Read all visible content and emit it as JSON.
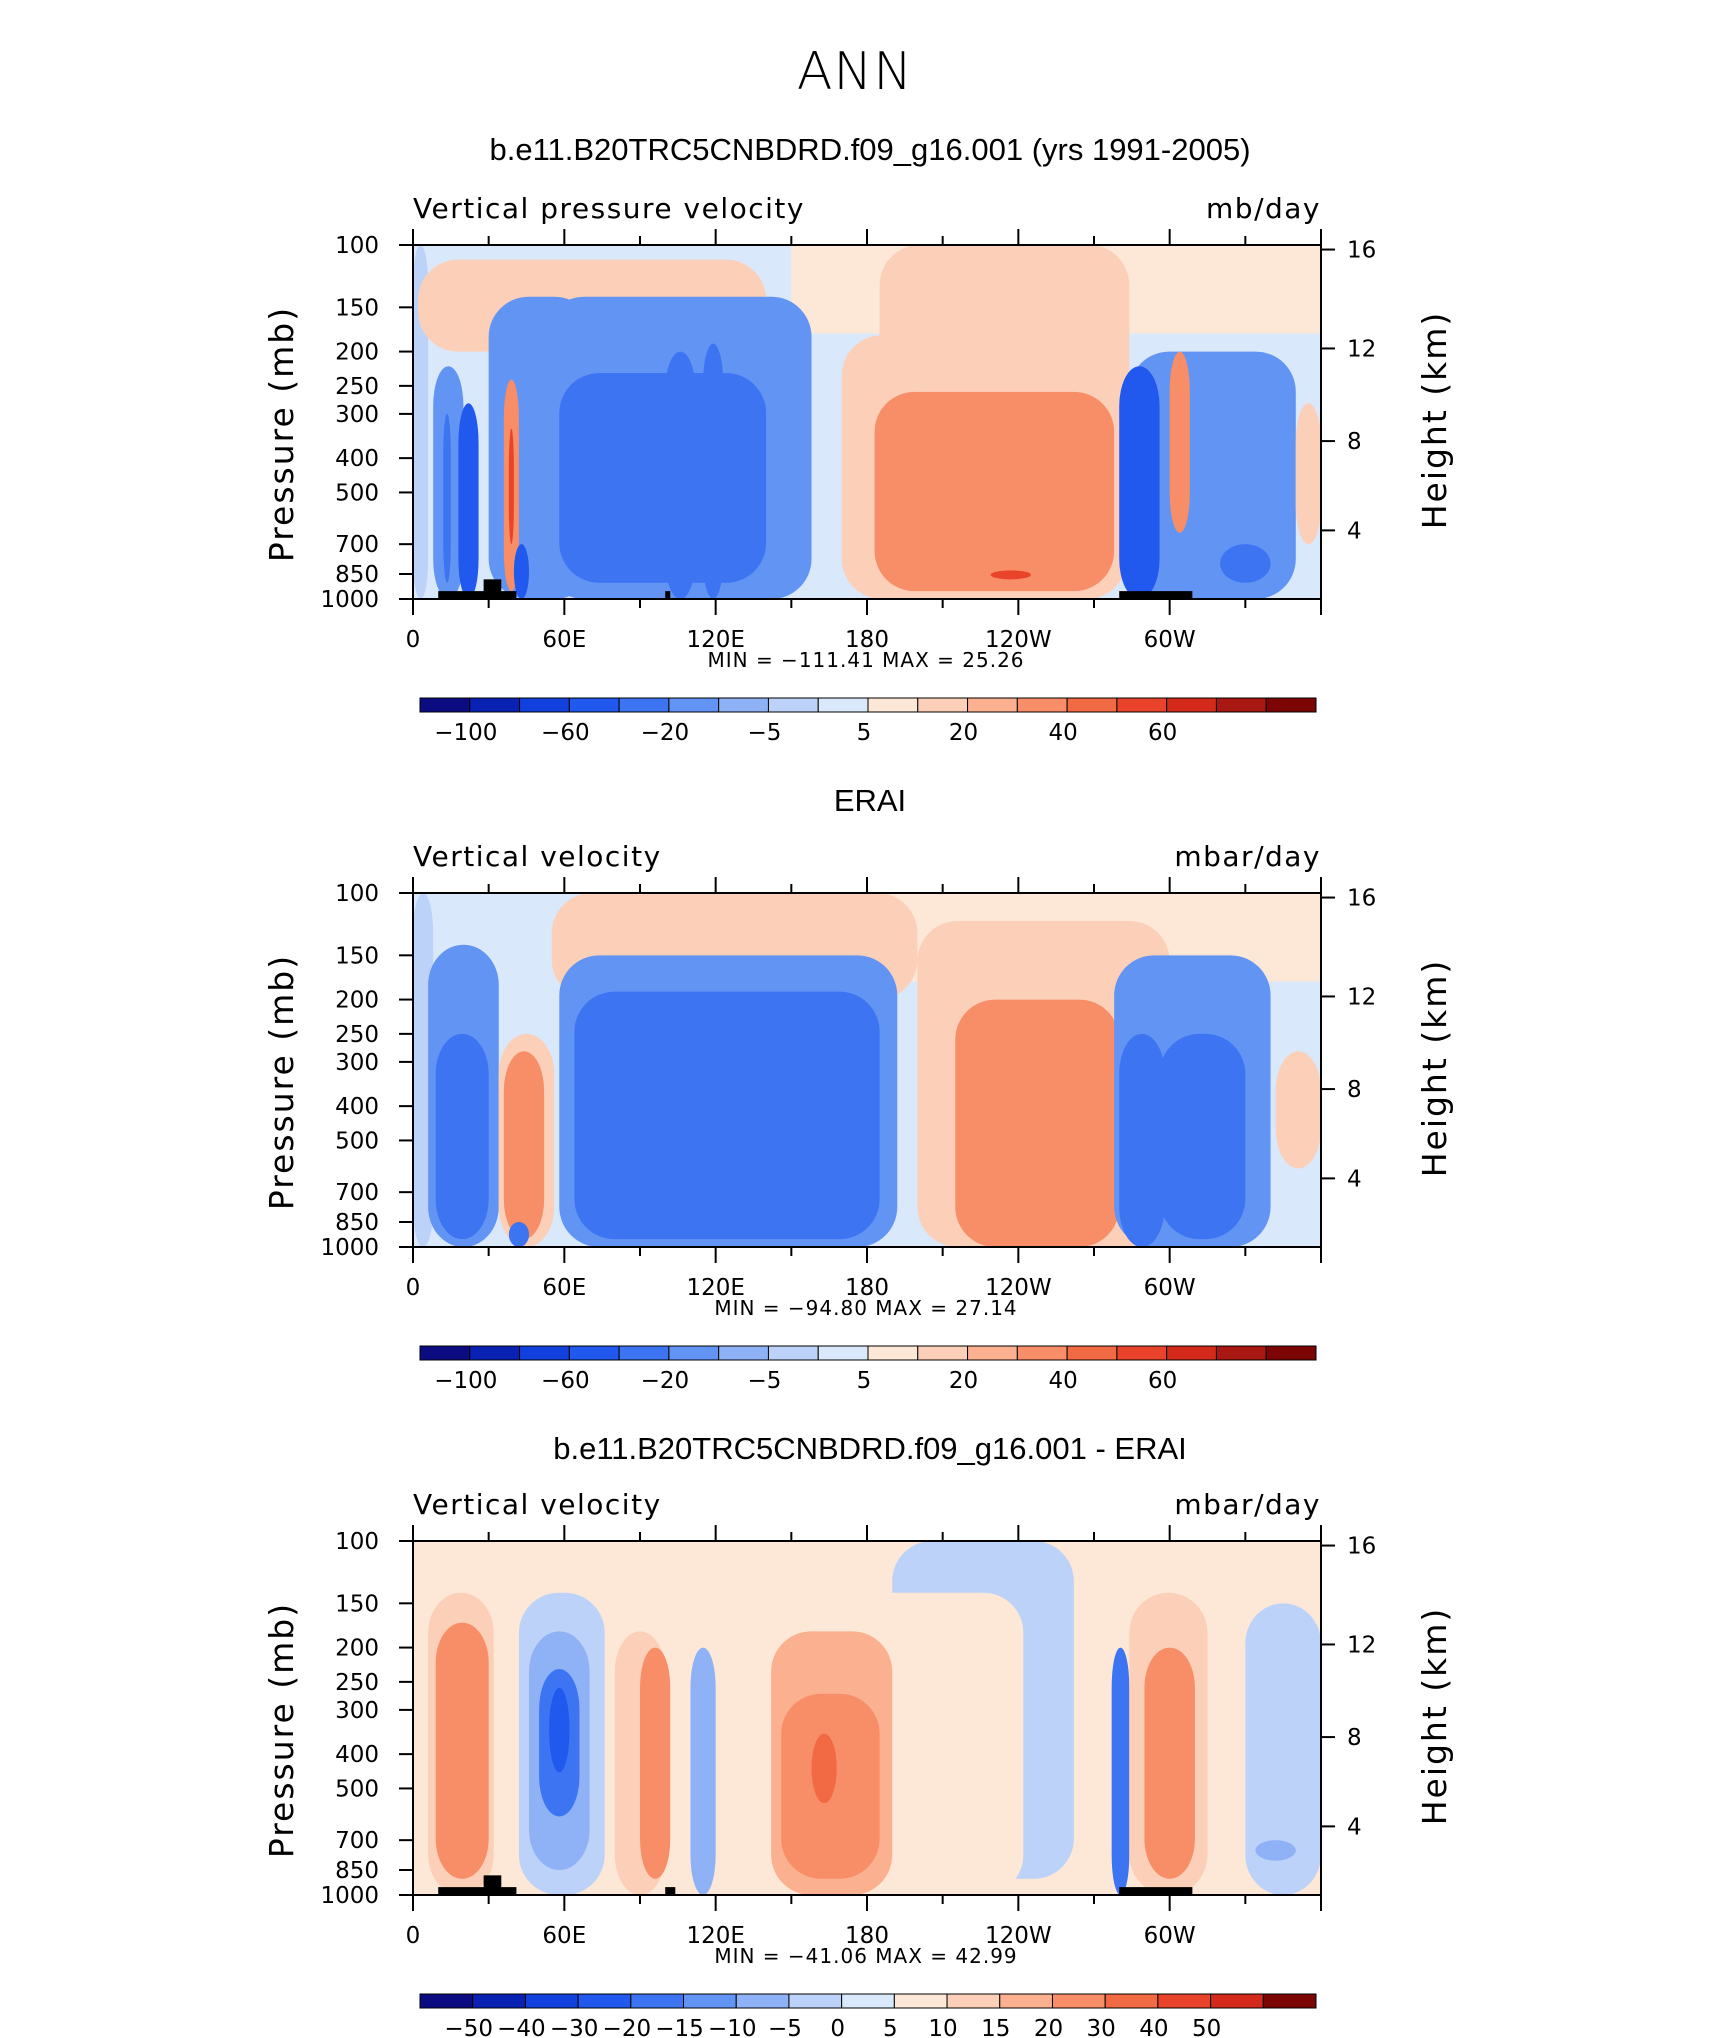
{
  "title": "ANN",
  "chart_data": [
    {
      "type": "heatmap",
      "title": "b.e11.B20TRC5CNBDRD.f09_g16.001 (yrs 1991-2005)",
      "left_string": "Vertical pressure velocity",
      "right_string": "mb/day",
      "ylabel": "Pressure (mb)",
      "ylabel_right": "Height (km)",
      "x_tick_labels": [
        "0",
        "60E",
        "120E",
        "180",
        "120W",
        "60W"
      ],
      "y_tick_labels": [
        "100",
        "150",
        "200",
        "250",
        "300",
        "400",
        "500",
        "700",
        "850",
        "1000"
      ],
      "y_right_tick_labels": [
        "16",
        "12",
        "8",
        "4"
      ],
      "stats": "MIN = −111.41   MAX =  25.26",
      "min": -111.41,
      "max": 25.26,
      "colorbar_labels": [
        "−100",
        "−60",
        "−20",
        "−5",
        "5",
        "20",
        "40",
        "60"
      ],
      "colorbar_colors": [
        "#0b0b82",
        "#0a22b4",
        "#1240dc",
        "#2158ee",
        "#3c74f2",
        "#6294f4",
        "#8fb2f6",
        "#bcd2f8",
        "#d9e8fb",
        "#fde8d8",
        "#fcd0b8",
        "#fbb090",
        "#f78e68",
        "#f26a44",
        "#e9442a",
        "#d32a1c",
        "#a81712",
        "#7c0606"
      ],
      "blobs": [
        {
          "lon": 0,
          "lon2": 6,
          "p": 100,
          "p2": 1000,
          "v": -5
        },
        {
          "lon": 2,
          "lon2": 140,
          "p": 110,
          "p2": 200,
          "v": 5
        },
        {
          "lon": 30,
          "lon2": 72,
          "p": 140,
          "p2": 1000,
          "v": -20
        },
        {
          "lon": 8,
          "lon2": 20,
          "p": 220,
          "p2": 1000,
          "v": -20
        },
        {
          "lon": 18,
          "lon2": 26,
          "p": 280,
          "p2": 1000,
          "v": -60
        },
        {
          "lon": 12,
          "lon2": 15,
          "p": 300,
          "p2": 900,
          "v": -40
        },
        {
          "lon": 36,
          "lon2": 42,
          "p": 240,
          "p2": 950,
          "v": 20
        },
        {
          "lon": 38,
          "lon2": 40,
          "p": 330,
          "p2": 700,
          "v": 40
        },
        {
          "lon": 40,
          "lon2": 46,
          "p": 700,
          "p2": 1000,
          "v": -60
        },
        {
          "lon": 52,
          "lon2": 158,
          "p": 140,
          "p2": 1000,
          "v": -20
        },
        {
          "lon": 58,
          "lon2": 140,
          "p": 230,
          "p2": 900,
          "v": -30
        },
        {
          "lon": 100,
          "lon2": 112,
          "p": 200,
          "p2": 1000,
          "v": -40
        },
        {
          "lon": 115,
          "lon2": 123,
          "p": 190,
          "p2": 1000,
          "v": -40
        },
        {
          "lon": 185,
          "lon2": 284,
          "p": 100,
          "p2": 300,
          "v": 5
        },
        {
          "lon": 170,
          "lon2": 283,
          "p": 180,
          "p2": 1000,
          "v": 5
        },
        {
          "lon": 183,
          "lon2": 278,
          "p": 260,
          "p2": 950,
          "v": 20
        },
        {
          "lon": 229,
          "lon2": 245,
          "p": 830,
          "p2": 880,
          "v": 40
        },
        {
          "lon": 284,
          "lon2": 350,
          "p": 200,
          "p2": 1000,
          "v": -20
        },
        {
          "lon": 280,
          "lon2": 296,
          "p": 220,
          "p2": 1000,
          "v": -60
        },
        {
          "lon": 300,
          "lon2": 308,
          "p": 200,
          "p2": 650,
          "v": 20
        },
        {
          "lon": 320,
          "lon2": 340,
          "p": 700,
          "p2": 900,
          "v": -40
        },
        {
          "lon": 350,
          "lon2": 360,
          "p": 280,
          "p2": 700,
          "v": 5
        }
      ],
      "topography": [
        {
          "lon": 10,
          "lon2": 41,
          "p": 950
        },
        {
          "lon": 28,
          "lon2": 35,
          "p": 880
        },
        {
          "lon": 100,
          "lon2": 102,
          "p": 950
        },
        {
          "lon": 280,
          "lon2": 309,
          "p": 950
        }
      ]
    },
    {
      "type": "heatmap",
      "title": "ERAI",
      "left_string": "Vertical velocity",
      "right_string": "mbar/day",
      "ylabel": "Pressure (mb)",
      "ylabel_right": "Height (km)",
      "x_tick_labels": [
        "0",
        "60E",
        "120E",
        "180",
        "120W",
        "60W"
      ],
      "y_tick_labels": [
        "100",
        "150",
        "200",
        "250",
        "300",
        "400",
        "500",
        "700",
        "850",
        "1000"
      ],
      "y_right_tick_labels": [
        "16",
        "12",
        "8",
        "4"
      ],
      "stats": "MIN = −94.80   MAX =  27.14",
      "min": -94.8,
      "max": 27.14,
      "colorbar_labels": [
        "−100",
        "−60",
        "−20",
        "−5",
        "5",
        "20",
        "40",
        "60"
      ],
      "colorbar_colors": [
        "#0b0b82",
        "#0a22b4",
        "#1240dc",
        "#2158ee",
        "#3c74f2",
        "#6294f4",
        "#8fb2f6",
        "#bcd2f8",
        "#d9e8fb",
        "#fde8d8",
        "#fcd0b8",
        "#fbb090",
        "#f78e68",
        "#f26a44",
        "#e9442a",
        "#d32a1c",
        "#a81712",
        "#7c0606"
      ],
      "blobs": [
        {
          "lon": 0,
          "lon2": 8,
          "p": 100,
          "p2": 1000,
          "v": -5
        },
        {
          "lon": 55,
          "lon2": 200,
          "p": 100,
          "p2": 200,
          "v": 5
        },
        {
          "lon": 200,
          "lon2": 300,
          "p": 120,
          "p2": 1000,
          "v": 5
        },
        {
          "lon": 6,
          "lon2": 34,
          "p": 140,
          "p2": 1000,
          "v": -20
        },
        {
          "lon": 9,
          "lon2": 30,
          "p": 250,
          "p2": 950,
          "v": -30
        },
        {
          "lon": 34,
          "lon2": 56,
          "p": 250,
          "p2": 1000,
          "v": 5
        },
        {
          "lon": 36,
          "lon2": 52,
          "p": 280,
          "p2": 950,
          "v": 20
        },
        {
          "lon": 38,
          "lon2": 46,
          "p": 850,
          "p2": 1000,
          "v": -40
        },
        {
          "lon": 58,
          "lon2": 192,
          "p": 150,
          "p2": 1000,
          "v": -20
        },
        {
          "lon": 64,
          "lon2": 185,
          "p": 190,
          "p2": 950,
          "v": -30
        },
        {
          "lon": 82,
          "lon2": 100,
          "p": 280,
          "p2": 750,
          "v": -40
        },
        {
          "lon": 135,
          "lon2": 162,
          "p": 250,
          "p2": 750,
          "v": -40
        },
        {
          "lon": 215,
          "lon2": 280,
          "p": 200,
          "p2": 1000,
          "v": 20
        },
        {
          "lon": 278,
          "lon2": 340,
          "p": 150,
          "p2": 1000,
          "v": -20
        },
        {
          "lon": 280,
          "lon2": 298,
          "p": 250,
          "p2": 1000,
          "v": -40
        },
        {
          "lon": 296,
          "lon2": 330,
          "p": 250,
          "p2": 950,
          "v": -40
        },
        {
          "lon": 342,
          "lon2": 360,
          "p": 280,
          "p2": 600,
          "v": 5
        }
      ],
      "topography": []
    },
    {
      "type": "heatmap",
      "title": "b.e11.B20TRC5CNBDRD.f09_g16.001 - ERAI",
      "left_string": "Vertical velocity",
      "right_string": "mbar/day",
      "ylabel": "Pressure (mb)",
      "ylabel_right": "Height (km)",
      "x_tick_labels": [
        "0",
        "60E",
        "120E",
        "180",
        "120W",
        "60W"
      ],
      "y_tick_labels": [
        "100",
        "150",
        "200",
        "250",
        "300",
        "400",
        "500",
        "700",
        "850",
        "1000"
      ],
      "y_right_tick_labels": [
        "16",
        "12",
        "8",
        "4"
      ],
      "stats": "MIN = −41.06   MAX =  42.99",
      "min": -41.06,
      "max": 42.99,
      "colorbar_labels": [
        "−50",
        "−40",
        "−30",
        "−20",
        "−15",
        "−10",
        "−5",
        "0",
        "5",
        "10",
        "15",
        "20",
        "30",
        "40",
        "50"
      ],
      "colorbar_colors": [
        "#0b0b82",
        "#0a22b4",
        "#1240dc",
        "#2158ee",
        "#3c74f2",
        "#6294f4",
        "#8fb2f6",
        "#bcd2f8",
        "#d9e8fb",
        "#fde8d8",
        "#fcd0b8",
        "#fbb090",
        "#f78e68",
        "#f26a44",
        "#e9442a",
        "#d32a1c",
        "#7c0606"
      ],
      "blobs": [
        {
          "lon": 190,
          "lon2": 262,
          "p": 100,
          "p2": 900,
          "v": -2
        },
        {
          "lon": 330,
          "lon2": 360,
          "p": 150,
          "p2": 1000,
          "v": -2
        },
        {
          "lon": 6,
          "lon2": 32,
          "p": 140,
          "p2": 1000,
          "v": 12
        },
        {
          "lon": 9,
          "lon2": 30,
          "p": 170,
          "p2": 900,
          "v": 25
        },
        {
          "lon": 42,
          "lon2": 76,
          "p": 140,
          "p2": 1000,
          "v": -2
        },
        {
          "lon": 46,
          "lon2": 70,
          "p": 180,
          "p2": 850,
          "v": -7
        },
        {
          "lon": 50,
          "lon2": 66,
          "p": 230,
          "p2": 600,
          "v": -17
        },
        {
          "lon": 54,
          "lon2": 62,
          "p": 260,
          "p2": 450,
          "v": -25
        },
        {
          "lon": 80,
          "lon2": 100,
          "p": 180,
          "p2": 1000,
          "v": 12
        },
        {
          "lon": 90,
          "lon2": 102,
          "p": 200,
          "p2": 900,
          "v": 25
        },
        {
          "lon": 110,
          "lon2": 120,
          "p": 200,
          "p2": 1000,
          "v": -7
        },
        {
          "lon": 140,
          "lon2": 242,
          "p": 140,
          "p2": 1000,
          "v": 7
        },
        {
          "lon": 142,
          "lon2": 190,
          "p": 180,
          "p2": 1000,
          "v": 17
        },
        {
          "lon": 146,
          "lon2": 185,
          "p": 270,
          "p2": 900,
          "v": 25
        },
        {
          "lon": 158,
          "lon2": 168,
          "p": 350,
          "p2": 550,
          "v": 35
        },
        {
          "lon": 277,
          "lon2": 284,
          "p": 200,
          "p2": 1000,
          "v": -17
        },
        {
          "lon": 284,
          "lon2": 315,
          "p": 140,
          "p2": 1000,
          "v": 12
        },
        {
          "lon": 290,
          "lon2": 310,
          "p": 200,
          "p2": 900,
          "v": 25
        },
        {
          "lon": 334,
          "lon2": 350,
          "p": 700,
          "p2": 800,
          "v": -7
        }
      ],
      "topography": [
        {
          "lon": 10,
          "lon2": 41,
          "p": 950
        },
        {
          "lon": 28,
          "lon2": 35,
          "p": 880
        },
        {
          "lon": 100,
          "lon2": 104,
          "p": 950
        },
        {
          "lon": 280,
          "lon2": 309,
          "p": 950
        }
      ]
    }
  ]
}
